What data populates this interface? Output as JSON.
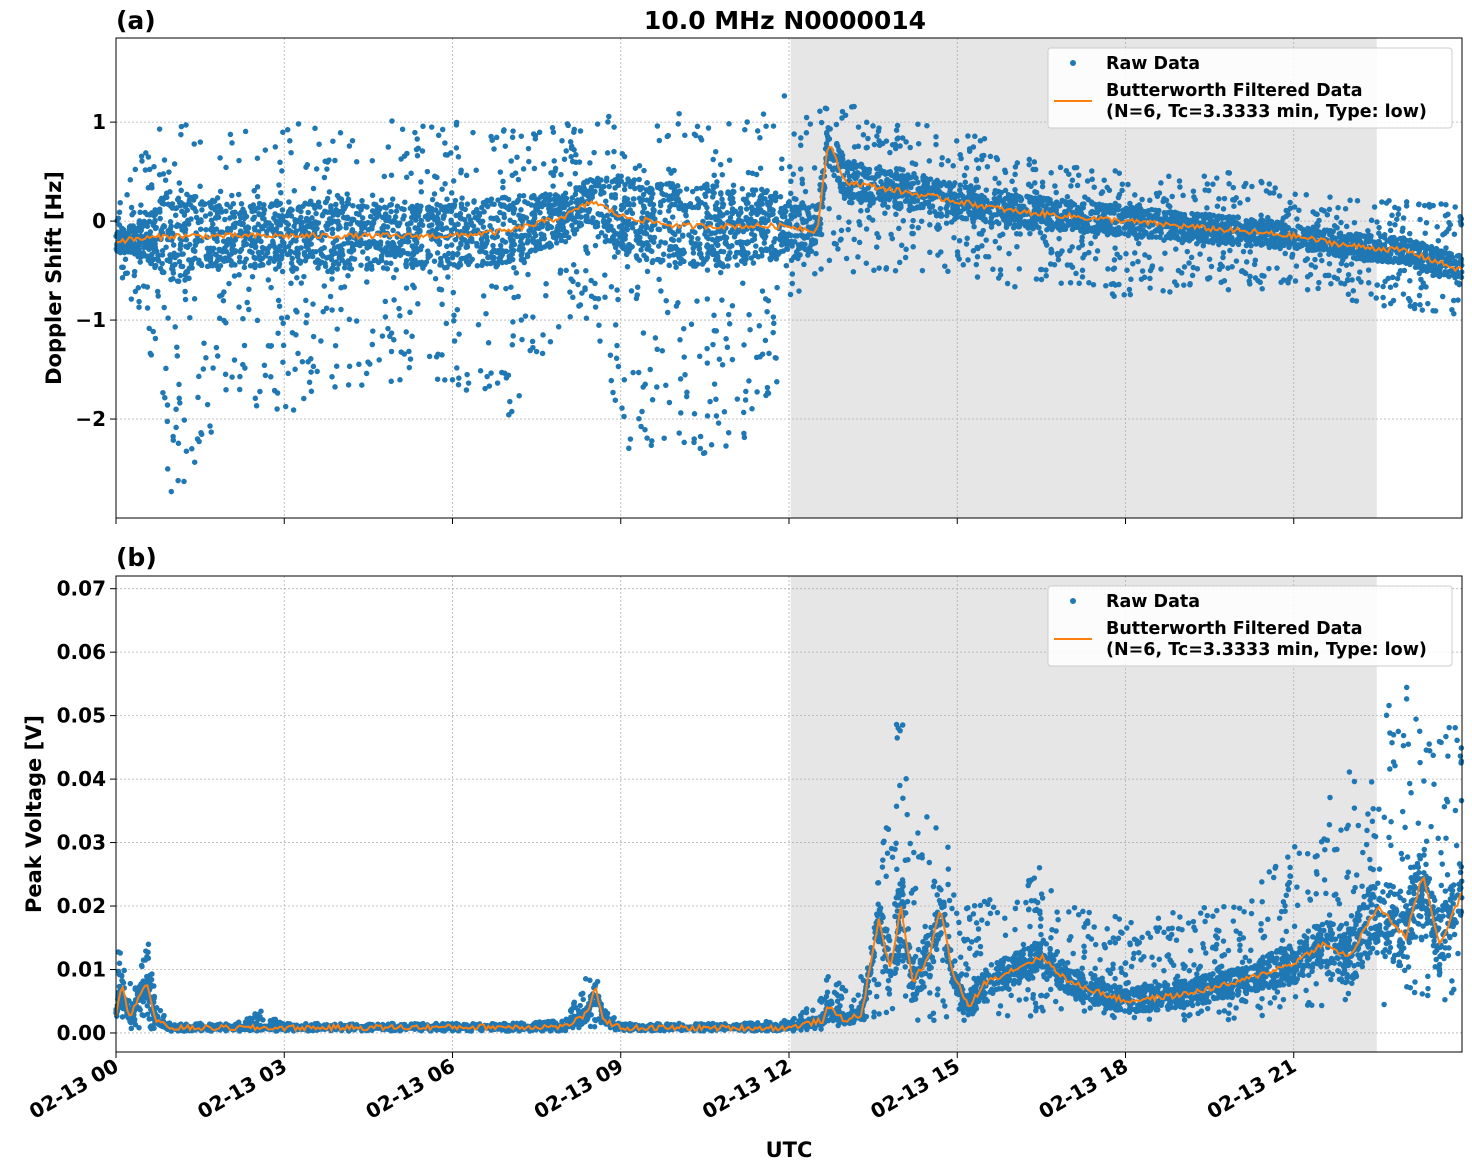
{
  "title": "10.0 MHz N0000014",
  "colors": {
    "raw": "#1f77b4",
    "filtered": "#ff7f0e",
    "shade": "#e6e6e6",
    "grid": "#b0b0b0"
  },
  "x_axis": {
    "label": "UTC",
    "range_hours": [
      0,
      24
    ],
    "ticks": [
      {
        "hour": 0,
        "label": "02-13 00"
      },
      {
        "hour": 3,
        "label": "02-13 03"
      },
      {
        "hour": 6,
        "label": "02-13 06"
      },
      {
        "hour": 9,
        "label": "02-13 09"
      },
      {
        "hour": 12,
        "label": "02-13 12"
      },
      {
        "hour": 15,
        "label": "02-13 15"
      },
      {
        "hour": 18,
        "label": "02-13 18"
      },
      {
        "hour": 21,
        "label": "02-13 21"
      }
    ]
  },
  "legend": {
    "raw_label": "Raw Data",
    "filtered_label_line1": "Butterworth Filtered Data",
    "filtered_label_line2": "(N=6, Tc=3.3333 min, Type: low)",
    "placement": "top-right"
  },
  "chart_data": [
    {
      "type": "scatter",
      "panel_label": "(a)",
      "ylabel": "Doppler Shift [Hz]",
      "ylim": [
        -3.0,
        1.85
      ],
      "yticks": [
        {
          "value": 1,
          "label": "1"
        },
        {
          "value": 0,
          "label": "0"
        },
        {
          "value": -1,
          "label": "−1"
        },
        {
          "value": -2,
          "label": "−2"
        }
      ],
      "shaded_region_hours": [
        12.03,
        22.48
      ],
      "grid": true,
      "series": [
        {
          "name": "Raw Data",
          "kind": "scatter",
          "color": "#1f77b4",
          "envelope": {
            "x": [
              0,
              0.5,
              1,
              1.5,
              2,
              3,
              4,
              5,
              6,
              7,
              8,
              8.5,
              9,
              10,
              11,
              12,
              12.3,
              12.7,
              13,
              14,
              15,
              16,
              17,
              18,
              19,
              20,
              21,
              22,
              23,
              24
            ],
            "upper": [
              0.3,
              0.7,
              1.4,
              0.8,
              0.9,
              1.0,
              1.05,
              1.05,
              1.0,
              0.95,
              1.0,
              1.0,
              1.1,
              1.1,
              1.05,
              1.3,
              1.2,
              1.4,
              1.2,
              1.0,
              0.95,
              0.75,
              0.55,
              0.5,
              0.45,
              0.5,
              0.3,
              0.25,
              0.2,
              0.2
            ],
            "lower": [
              -0.6,
              -1.0,
              -2.8,
              -2.4,
              -1.8,
              -2.0,
              -1.8,
              -1.7,
              -1.7,
              -2.0,
              -1.0,
              -1.0,
              -2.3,
              -2.4,
              -2.4,
              -1.5,
              -0.8,
              -0.4,
              -0.6,
              -0.5,
              -0.6,
              -0.7,
              -0.7,
              -0.8,
              -0.7,
              -0.7,
              -0.7,
              -0.8,
              -0.9,
              -1.0
            ]
          }
        },
        {
          "name": "Butterworth Filtered Data (N=6, Tc=3.3333 min, Type: low)",
          "kind": "line",
          "color": "#ff7f0e",
          "x": [
            0,
            1,
            2,
            3,
            4,
            5,
            6,
            7,
            8,
            8.5,
            9,
            10,
            11,
            12,
            12.5,
            12.7,
            13,
            14,
            15,
            16,
            17,
            18,
            19,
            20,
            21,
            22,
            23,
            24
          ],
          "y": [
            -0.2,
            -0.15,
            -0.15,
            -0.15,
            -0.15,
            -0.15,
            -0.15,
            -0.1,
            0.05,
            0.2,
            0.05,
            -0.05,
            -0.05,
            -0.05,
            -0.1,
            0.8,
            0.4,
            0.3,
            0.2,
            0.1,
            0.05,
            0.0,
            -0.05,
            -0.1,
            -0.15,
            -0.25,
            -0.3,
            -0.5
          ]
        }
      ]
    },
    {
      "type": "scatter",
      "panel_label": "(b)",
      "ylabel": "Peak Voltage [V]",
      "ylim": [
        -0.003,
        0.072
      ],
      "yticks": [
        {
          "value": 0.07,
          "label": "0.07"
        },
        {
          "value": 0.06,
          "label": "0.06"
        },
        {
          "value": 0.05,
          "label": "0.05"
        },
        {
          "value": 0.04,
          "label": "0.04"
        },
        {
          "value": 0.03,
          "label": "0.03"
        },
        {
          "value": 0.02,
          "label": "0.02"
        },
        {
          "value": 0.01,
          "label": "0.01"
        },
        {
          "value": 0.0,
          "label": "0.00"
        }
      ],
      "shaded_region_hours": [
        12.03,
        22.48
      ],
      "grid": true,
      "series": [
        {
          "name": "Raw Data",
          "kind": "scatter",
          "color": "#1f77b4",
          "envelope": {
            "x": [
              0,
              0.1,
              0.3,
              0.5,
              0.6,
              0.7,
              0.9,
              1,
              2,
              2.6,
              3,
              5,
              7,
              8,
              8.4,
              8.5,
              8.7,
              9,
              10,
              11,
              12,
              12.6,
              12.7,
              13,
              13.4,
              13.7,
              14,
              14.2,
              14.5,
              14.7,
              15,
              16,
              16.5,
              17,
              18,
              19,
              20,
              21,
              21.5,
              22,
              22.5,
              23,
              23.5,
              24
            ],
            "upper": [
              0.012,
              0.016,
              0.006,
              0.012,
              0.016,
              0.006,
              0.002,
              0.0015,
              0.0015,
              0.0035,
              0.0015,
              0.0015,
              0.0015,
              0.002,
              0.009,
              0.0115,
              0.004,
              0.0015,
              0.0015,
              0.0015,
              0.002,
              0.006,
              0.011,
              0.007,
              0.01,
              0.035,
              0.058,
              0.03,
              0.035,
              0.038,
              0.02,
              0.022,
              0.027,
              0.02,
              0.018,
              0.02,
              0.02,
              0.03,
              0.035,
              0.045,
              0.05,
              0.055,
              0.045,
              0.052
            ],
            "lower": [
              0.001,
              0.001,
              0.0005,
              0.0005,
              0.0005,
              0.0005,
              0.0003,
              0.0003,
              0.0003,
              0.0003,
              0.0003,
              0.0003,
              0.0003,
              0.0003,
              0.0005,
              0.001,
              0.0005,
              0.0003,
              0.0003,
              0.0003,
              0.0003,
              0.0005,
              0.001,
              0.001,
              0.002,
              0.002,
              0.002,
              0.001,
              0.001,
              0.002,
              0.001,
              0.002,
              0.002,
              0.003,
              0.002,
              0.002,
              0.002,
              0.003,
              0.004,
              0.004,
              0.004,
              0.005,
              0.005,
              0.005
            ]
          }
        },
        {
          "name": "Butterworth Filtered Data (N=6, Tc=3.3333 min, Type: low)",
          "kind": "line",
          "color": "#ff7f0e",
          "x": [
            0,
            0.1,
            0.25,
            0.4,
            0.55,
            0.7,
            0.9,
            1,
            3,
            8,
            8.4,
            8.55,
            8.7,
            9,
            12,
            12.6,
            12.7,
            13,
            13.3,
            13.6,
            13.8,
            14,
            14.2,
            14.5,
            14.7,
            14.9,
            15.2,
            15.5,
            16,
            16.5,
            17,
            18,
            19,
            20,
            21,
            21.5,
            22,
            22.5,
            23,
            23.3,
            23.6,
            24
          ],
          "y": [
            0.003,
            0.008,
            0.002,
            0.006,
            0.008,
            0.002,
            0.001,
            0.0008,
            0.0008,
            0.001,
            0.003,
            0.007,
            0.002,
            0.0008,
            0.0008,
            0.002,
            0.004,
            0.002,
            0.003,
            0.018,
            0.01,
            0.02,
            0.008,
            0.012,
            0.02,
            0.01,
            0.004,
            0.008,
            0.01,
            0.012,
            0.008,
            0.005,
            0.006,
            0.008,
            0.011,
            0.014,
            0.012,
            0.02,
            0.015,
            0.025,
            0.014,
            0.022
          ]
        }
      ]
    }
  ]
}
